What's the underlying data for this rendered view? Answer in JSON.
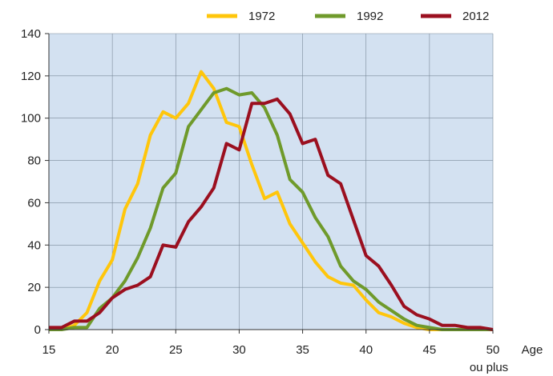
{
  "chart_data": {
    "type": "line",
    "xlabel": "Age",
    "xlabel_sub": "ou plus",
    "ylabel": "",
    "xlim": [
      15,
      50
    ],
    "ylim": [
      0,
      140
    ],
    "xticks": [
      15,
      20,
      25,
      30,
      35,
      40,
      45,
      50
    ],
    "yticks": [
      0,
      20,
      40,
      60,
      80,
      100,
      120,
      140
    ],
    "grid": true,
    "legend_position": "top",
    "plot_background": "#d3e1f1",
    "x": [
      15,
      16,
      17,
      18,
      19,
      20,
      21,
      22,
      23,
      24,
      25,
      26,
      27,
      28,
      29,
      30,
      31,
      32,
      33,
      34,
      35,
      36,
      37,
      38,
      39,
      40,
      41,
      42,
      43,
      44,
      45,
      46,
      47,
      48,
      49,
      50
    ],
    "series": [
      {
        "name": "1972",
        "color": "#ffc60b",
        "values": [
          0,
          0,
          2,
          8,
          23,
          33,
          57,
          69,
          92,
          103,
          100,
          107,
          122,
          114,
          98,
          96,
          78,
          62,
          65,
          50,
          41,
          32,
          25,
          22,
          21,
          14,
          8,
          6,
          3,
          1,
          0,
          0,
          0,
          0,
          0,
          0
        ]
      },
      {
        "name": "1992",
        "color": "#6f9a2b",
        "values": [
          0,
          0,
          1,
          1,
          10,
          15,
          23,
          34,
          48,
          67,
          74,
          96,
          104,
          112,
          114,
          111,
          112,
          105,
          92,
          71,
          65,
          53,
          44,
          30,
          23,
          19,
          13,
          9,
          5,
          2,
          1,
          0,
          0,
          0,
          0,
          0
        ]
      },
      {
        "name": "2012",
        "color": "#9b0f1f",
        "values": [
          1,
          1,
          4,
          4,
          8,
          15,
          19,
          21,
          25,
          40,
          39,
          51,
          58,
          67,
          88,
          85,
          107,
          107,
          109,
          102,
          88,
          90,
          73,
          69,
          52,
          35,
          30,
          21,
          11,
          7,
          5,
          2,
          2,
          1,
          1,
          0
        ]
      }
    ]
  }
}
